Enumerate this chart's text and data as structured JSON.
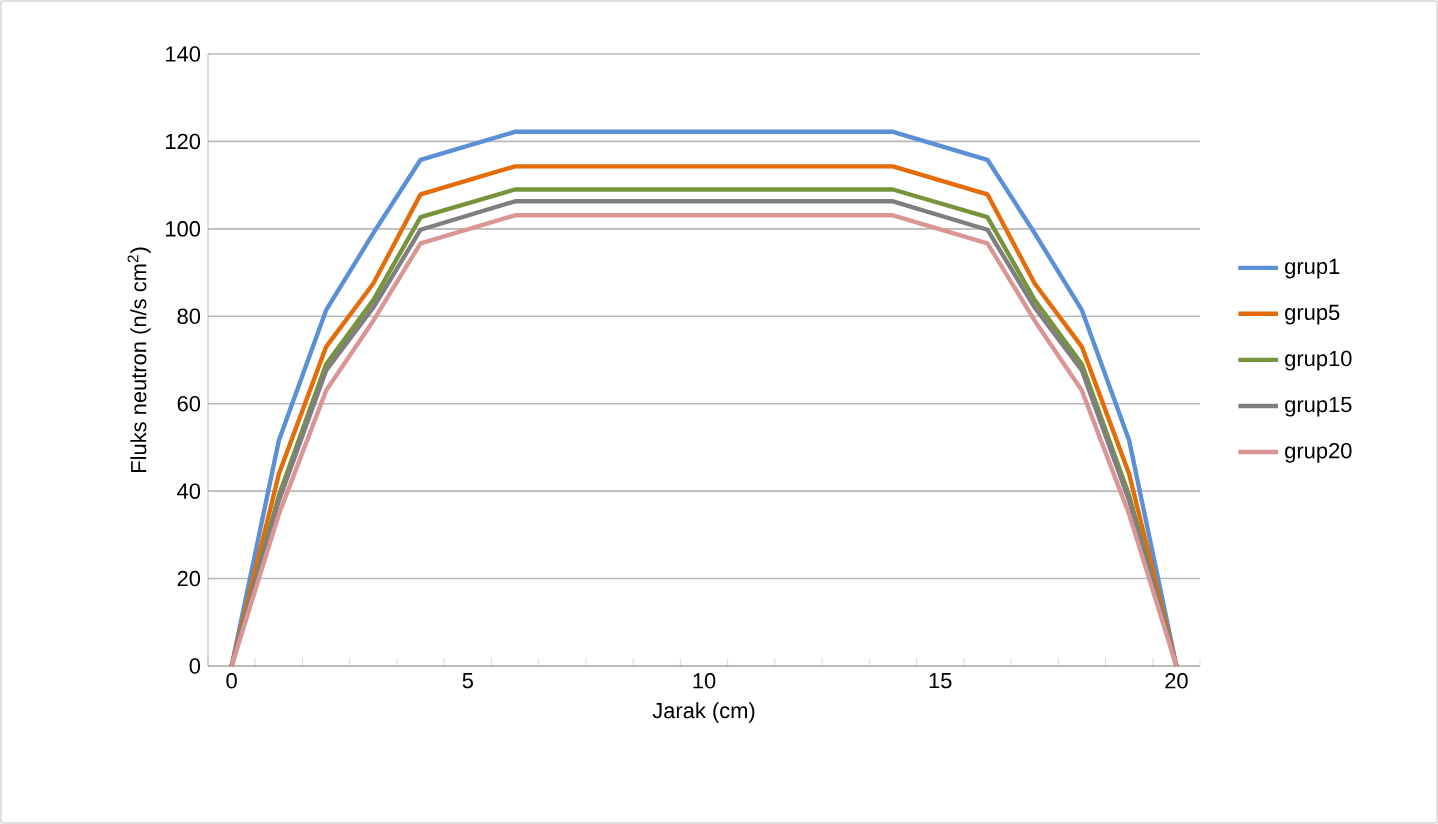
{
  "chart_data": {
    "type": "line",
    "xlabel": "Jarak (cm)",
    "ylabel": "Fluks neutron (n/s cm$^{2}$)",
    "x": [
      0,
      1,
      2,
      3,
      4,
      6,
      14,
      16,
      17,
      18,
      19,
      20
    ],
    "series": [
      {
        "name": "grup1",
        "color": "#5b8fd6",
        "values": [
          0,
          51.6,
          81.4,
          99,
          115.8,
          122.2,
          122.2,
          115.8,
          99,
          81.4,
          51.6,
          0
        ]
      },
      {
        "name": "grup5",
        "color": "#e46c0a",
        "values": [
          0,
          43.9,
          73,
          87.5,
          107.9,
          114.3,
          114.3,
          107.9,
          87.5,
          73,
          43.9,
          0
        ]
      },
      {
        "name": "grup10",
        "color": "#77933c",
        "values": [
          0,
          39,
          69,
          83.7,
          102.7,
          109,
          109,
          102.7,
          83.7,
          69,
          39,
          0
        ]
      },
      {
        "name": "grup15",
        "color": "#7f7f7f",
        "values": [
          0,
          37.8,
          67.6,
          82,
          99.8,
          106.3,
          106.3,
          99.8,
          82,
          67.6,
          37.8,
          0
        ]
      },
      {
        "name": "grup20",
        "color": "#d99694",
        "values": [
          0,
          34.7,
          63,
          79,
          96.7,
          103.1,
          103.1,
          96.7,
          79,
          63,
          34.7,
          0
        ]
      }
    ],
    "xlim": [
      -0.5,
      20.5
    ],
    "xticks": [
      0,
      5,
      10,
      15,
      20,
      {
        "value": -0.5,
        "label": null
      },
      {
        "value": 0.5,
        "label": null
      },
      {
        "value": 1.5,
        "label": null
      },
      {
        "value": 2.5,
        "label": null
      },
      {
        "value": 3.5,
        "label": null
      },
      {
        "value": 4.5,
        "label": null
      },
      {
        "value": 5.5,
        "label": null
      },
      {
        "value": 6.5,
        "label": null
      },
      {
        "value": 7.5,
        "label": null
      },
      {
        "value": 8.5,
        "label": null
      },
      {
        "value": 9.5,
        "label": null
      },
      {
        "value": 10.5,
        "label": null
      },
      {
        "value": 11.5,
        "label": null
      },
      {
        "value": 12.5,
        "label": null
      },
      {
        "value": 13.5,
        "label": null
      },
      {
        "value": 14.5,
        "label": null
      },
      {
        "value": 15.5,
        "label": null
      },
      {
        "value": 16.5,
        "label": null
      },
      {
        "value": 17.5,
        "label": null
      },
      {
        "value": 18.5,
        "label": null
      },
      {
        "value": 19.5,
        "label": null
      },
      {
        "value": 20.5,
        "label": null
      }
    ],
    "ylim": [
      0,
      140
    ],
    "yticks": [
      0,
      20,
      40,
      60,
      80,
      100,
      120,
      140
    ],
    "grid": "y",
    "legend": "right",
    "marker": "none",
    "line_style": "solid"
  }
}
